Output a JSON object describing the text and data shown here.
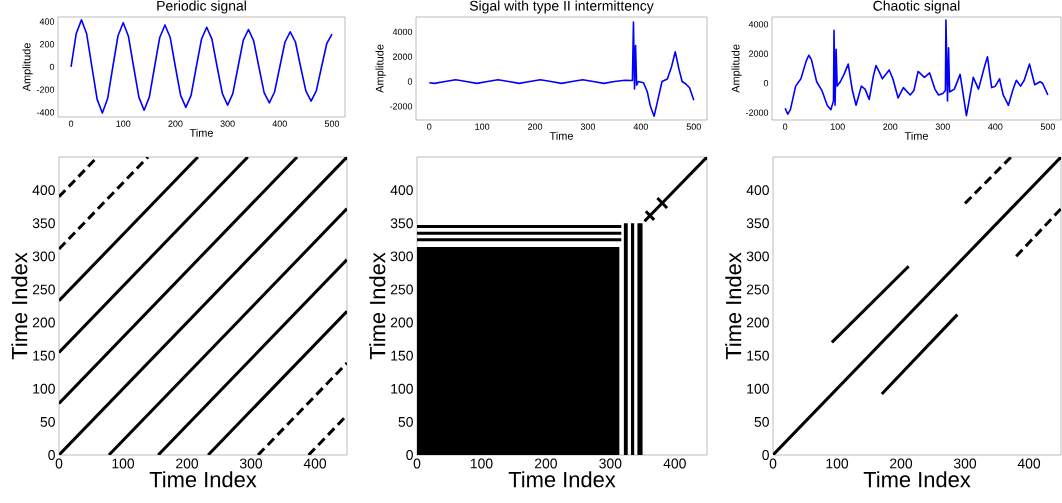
{
  "chart_data": [
    {
      "type": "line",
      "title": "Periodic signal",
      "xlabel": "Time",
      "ylabel": "Amplitude",
      "xlim": [
        -25,
        525
      ],
      "ylim": [
        -440,
        440
      ],
      "xticks": [
        0,
        100,
        200,
        300,
        400,
        500
      ],
      "yticks": [
        -400,
        -200,
        0,
        200,
        400
      ],
      "x": [
        0,
        10,
        20,
        30,
        40,
        50,
        60,
        70,
        80,
        90,
        100,
        110,
        120,
        130,
        140,
        150,
        160,
        170,
        180,
        190,
        200,
        210,
        220,
        230,
        240,
        250,
        260,
        270,
        280,
        290,
        300,
        310,
        320,
        330,
        340,
        350,
        360,
        370,
        380,
        390,
        400,
        410,
        420,
        430,
        440,
        450,
        460,
        470,
        480,
        490,
        500
      ],
      "series": [
        {
          "color": "#0000ff",
          "values": [
            0,
            295,
            415,
            290,
            0,
            -285,
            -405,
            -280,
            0,
            275,
            390,
            270,
            0,
            -265,
            -380,
            -265,
            0,
            260,
            370,
            260,
            0,
            -250,
            -355,
            -250,
            0,
            245,
            350,
            245,
            0,
            -235,
            -335,
            -235,
            0,
            235,
            330,
            230,
            0,
            -225,
            -315,
            -220,
            0,
            220,
            310,
            220,
            0,
            -210,
            -300,
            -210,
            0,
            205,
            290
          ]
        }
      ]
    },
    {
      "type": "line",
      "title": "Sigal with type II intermittency",
      "xlabel": "Time",
      "ylabel": "Amplitude",
      "xlim": [
        -25,
        525
      ],
      "ylim": [
        -3100,
        5200
      ],
      "xticks": [
        0,
        100,
        200,
        300,
        400,
        500
      ],
      "yticks": [
        -2000,
        0,
        2000,
        4000
      ],
      "x": [
        0,
        10,
        30,
        50,
        70,
        90,
        110,
        130,
        150,
        170,
        190,
        210,
        230,
        250,
        270,
        290,
        310,
        330,
        350,
        370,
        384,
        386,
        388,
        390,
        392,
        395,
        405,
        412,
        418,
        425,
        432,
        440,
        450,
        458,
        465,
        472,
        478,
        485,
        492,
        500
      ],
      "series": [
        {
          "color": "#0000ff",
          "values": [
            -100,
            -150,
            0,
            150,
            0,
            -150,
            0,
            150,
            0,
            -150,
            0,
            150,
            0,
            -150,
            0,
            150,
            0,
            -150,
            0,
            100,
            80,
            4800,
            -600,
            2900,
            -300,
            0,
            -100,
            -800,
            -2000,
            -2800,
            -1500,
            0,
            200,
            1200,
            2400,
            1000,
            0,
            -200,
            -500,
            -1500
          ]
        }
      ]
    },
    {
      "type": "line",
      "title": "Chaotic signal",
      "xlabel": "Time",
      "ylabel": "Amplitude",
      "xlim": [
        -25,
        525
      ],
      "ylim": [
        -2500,
        4500
      ],
      "xticks": [
        0,
        100,
        200,
        300,
        400,
        500
      ],
      "yticks": [
        -2000,
        0,
        2000,
        4000
      ],
      "x": [
        0,
        5,
        10,
        20,
        30,
        40,
        45,
        50,
        60,
        70,
        80,
        87,
        92,
        93,
        95,
        97,
        99,
        105,
        112,
        120,
        128,
        135,
        145,
        152,
        160,
        168,
        173,
        180,
        185,
        198,
        205,
        215,
        225,
        238,
        245,
        253,
        265,
        275,
        285,
        292,
        300,
        305,
        306,
        309,
        311,
        313,
        322,
        333,
        345,
        358,
        368,
        380,
        385,
        393,
        400,
        408,
        415,
        425,
        433,
        440,
        448,
        455,
        465,
        475,
        485,
        490,
        500
      ],
      "series": [
        {
          "color": "#0000ff",
          "values": [
            -1700,
            -2100,
            -1800,
            -200,
            300,
            1500,
            1900,
            1600,
            100,
            -500,
            -1500,
            -1800,
            -1200,
            3600,
            -1500,
            2300,
            -200,
            100,
            600,
            1300,
            -500,
            -1500,
            -200,
            -400,
            -1100,
            500,
            1200,
            700,
            300,
            900,
            300,
            -1000,
            -300,
            -800,
            -500,
            800,
            400,
            700,
            -400,
            -800,
            -700,
            -500,
            4300,
            -1200,
            2400,
            -600,
            -400,
            600,
            -2200,
            400,
            -400,
            1200,
            1800,
            -300,
            -200,
            300,
            -800,
            -1500,
            -500,
            200,
            -200,
            200,
            1300,
            -100,
            100,
            0,
            -800
          ]
        }
      ]
    },
    {
      "type": "line",
      "xlabel": "Time Index",
      "ylabel": "Time Index",
      "xlim": [
        0,
        450
      ],
      "ylim": [
        0,
        450
      ],
      "xticks": [
        0,
        100,
        200,
        300,
        400
      ],
      "yticks": [
        0,
        50,
        100,
        150,
        200,
        250,
        300,
        350,
        400
      ],
      "series": [
        {
          "color": "#000000",
          "x": [
            0,
            450
          ],
          "values": [
            0,
            450
          ]
        },
        {
          "color": "#000000",
          "x": [
            0,
            372
          ],
          "values": [
            78,
            450
          ]
        },
        {
          "color": "#000000",
          "x": [
            0,
            295
          ],
          "values": [
            155,
            450
          ]
        },
        {
          "color": "#000000",
          "x": [
            0,
            217
          ],
          "values": [
            233,
            450
          ]
        },
        {
          "color": "#000000",
          "x": [
            0,
            139
          ],
          "values": [
            311,
            450
          ],
          "line_style": "dashed"
        },
        {
          "color": "#000000",
          "x": [
            0,
            60
          ],
          "values": [
            390,
            450
          ],
          "line_style": "dashed"
        },
        {
          "color": "#000000",
          "x": [
            78,
            450
          ],
          "values": [
            0,
            372
          ]
        },
        {
          "color": "#000000",
          "x": [
            155,
            450
          ],
          "values": [
            0,
            295
          ]
        },
        {
          "color": "#000000",
          "x": [
            233,
            450
          ],
          "values": [
            0,
            217
          ]
        },
        {
          "color": "#000000",
          "x": [
            311,
            450
          ],
          "values": [
            0,
            139
          ],
          "line_style": "dashed"
        },
        {
          "color": "#000000",
          "x": [
            390,
            450
          ],
          "values": [
            0,
            60
          ],
          "line_style": "dashed"
        }
      ]
    },
    {
      "type": "line",
      "xlabel": "Time Index",
      "ylabel": "Time Index",
      "xlim": [
        0,
        450
      ],
      "ylim": [
        0,
        450
      ],
      "xticks": [
        0,
        100,
        200,
        300,
        400
      ],
      "yticks": [
        0,
        50,
        100,
        150,
        200,
        250,
        300,
        350,
        400
      ],
      "series": [
        {
          "type": "area",
          "color": "#000000",
          "x": [
            0,
            314
          ],
          "values": [
            314,
            314
          ]
        },
        {
          "type": "area",
          "color": "#000000",
          "x": [
            321,
            327
          ],
          "values": [
            350,
            350
          ]
        },
        {
          "type": "area",
          "color": "#000000",
          "x": [
            332,
            337
          ],
          "values": [
            350,
            350
          ]
        },
        {
          "type": "area",
          "color": "#000000",
          "x": [
            342,
            350
          ],
          "values": [
            350,
            350
          ]
        },
        {
          "color": "#000000",
          "x": [
            0,
            317
          ],
          "values": [
            325,
            325
          ]
        },
        {
          "color": "#000000",
          "x": [
            0,
            317
          ],
          "values": [
            335,
            335
          ]
        },
        {
          "color": "#000000",
          "x": [
            0,
            317
          ],
          "values": [
            345,
            345
          ]
        },
        {
          "color": "#000000",
          "x": [
            353,
            450
          ],
          "values": [
            353,
            450
          ]
        },
        {
          "color": "#000000",
          "x": [
            355,
            368
          ],
          "values": [
            368,
            355
          ]
        },
        {
          "color": "#000000",
          "x": [
            373,
            388
          ],
          "values": [
            388,
            373
          ]
        }
      ]
    },
    {
      "type": "line",
      "xlabel": "Time Index",
      "ylabel": "Time Index",
      "xlim": [
        0,
        450
      ],
      "ylim": [
        0,
        450
      ],
      "xticks": [
        0,
        100,
        200,
        300,
        400
      ],
      "yticks": [
        0,
        50,
        100,
        150,
        200,
        250,
        300,
        350,
        400
      ],
      "series": [
        {
          "color": "#000000",
          "x": [
            0,
            450
          ],
          "values": [
            0,
            450
          ]
        },
        {
          "color": "#000000",
          "x": [
            92,
            212
          ],
          "values": [
            170,
            285
          ]
        },
        {
          "color": "#000000",
          "x": [
            170,
            288
          ],
          "values": [
            92,
            212
          ]
        },
        {
          "color": "#000000",
          "x": [
            300,
            372
          ],
          "values": [
            380,
            450
          ],
          "line_style": "dashed"
        },
        {
          "color": "#000000",
          "x": [
            380,
            450
          ],
          "values": [
            300,
            372
          ],
          "line_style": "dashed"
        }
      ]
    }
  ]
}
